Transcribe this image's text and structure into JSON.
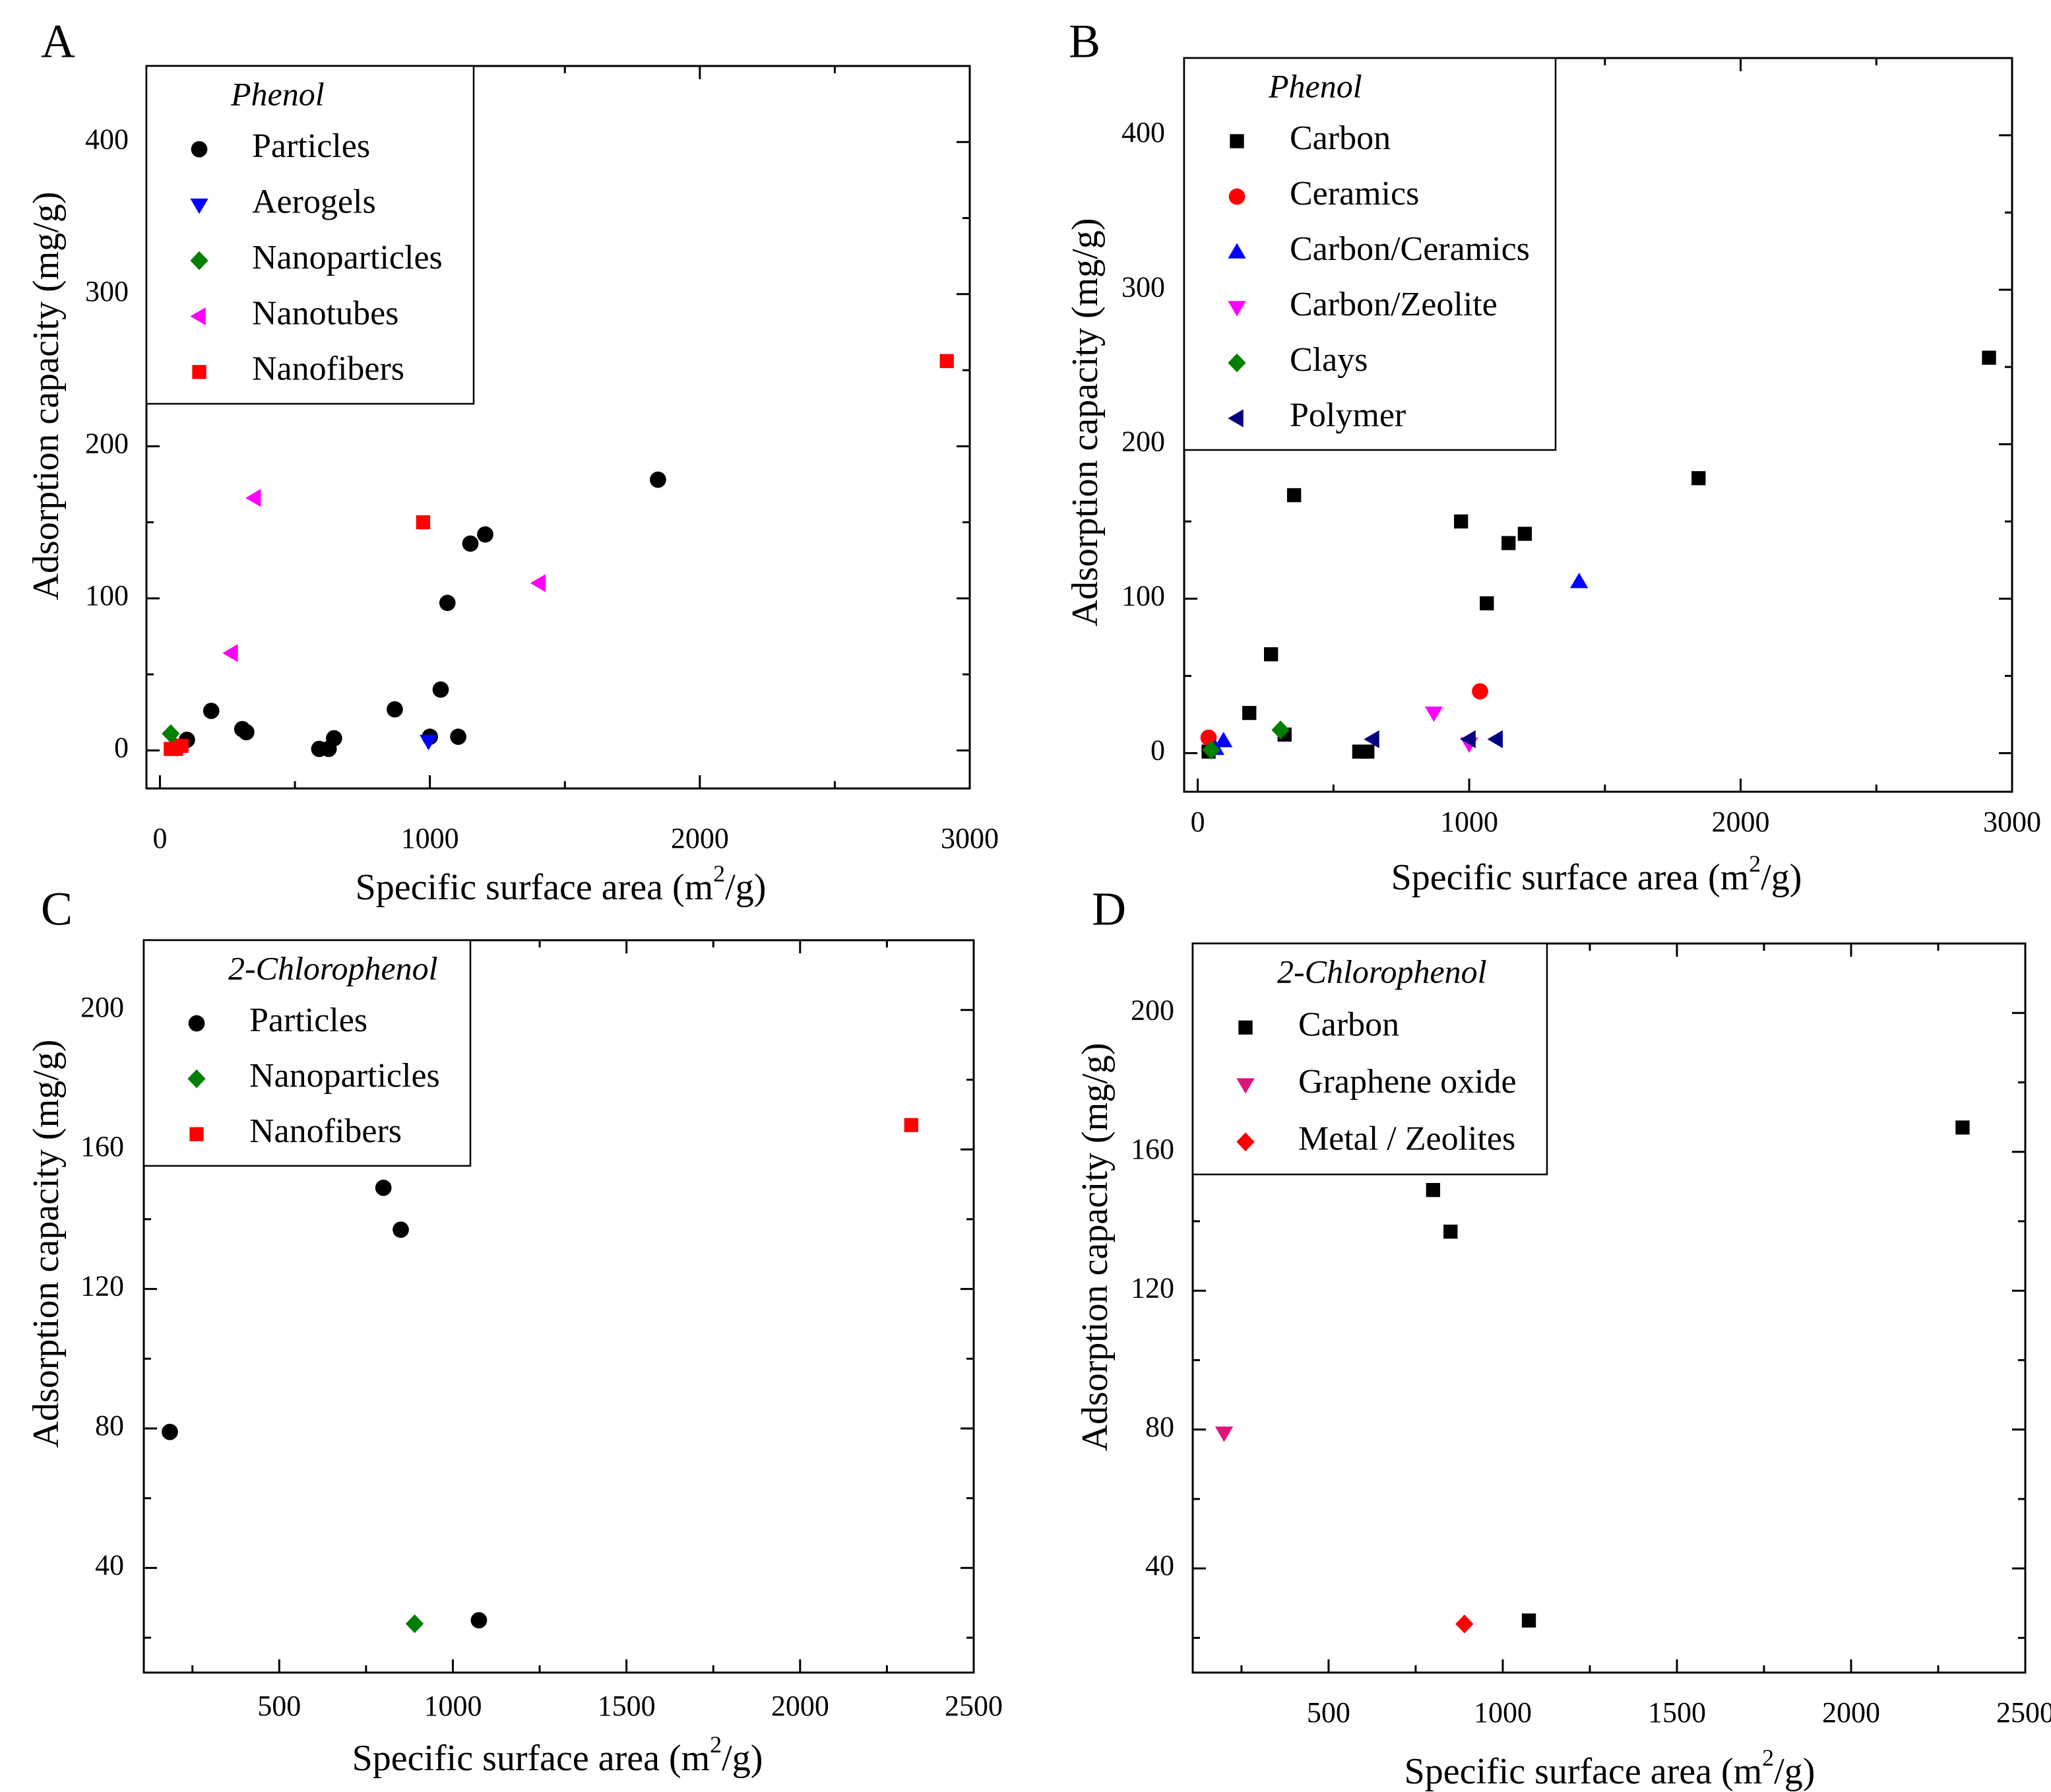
{
  "chart_data": [
    {
      "panel": "A",
      "type": "scatter",
      "xlabel": "Specific surface area (m",
      "xlabel_sup": "2",
      "xlabel_end": "/g)",
      "ylabel": "Adsorption capacity (mg/g)",
      "xlim": [
        -50,
        3000
      ],
      "ylim": [
        -25,
        450
      ],
      "xticks": [
        0,
        1000,
        2000,
        3000
      ],
      "yticks": [
        0,
        100,
        200,
        300,
        400
      ],
      "legend_title": "Phenol",
      "legend_position": "top-left",
      "series": [
        {
          "name": "Particles",
          "marker": "circle",
          "color": "#000000",
          "points": [
            [
              100,
              7
            ],
            [
              190,
              26
            ],
            [
              305,
              14
            ],
            [
              320,
              12
            ],
            [
              590,
              1
            ],
            [
              625,
              1
            ],
            [
              645,
              8
            ],
            [
              870,
              27
            ],
            [
              1000,
              9
            ],
            [
              1040,
              40
            ],
            [
              1065,
              97
            ],
            [
              1105,
              9
            ],
            [
              1150,
              136
            ],
            [
              1205,
              142
            ],
            [
              1845,
              178
            ]
          ]
        },
        {
          "name": "Aerogels",
          "marker": "triangle-down",
          "color": "#0000ff",
          "points": [
            [
              995,
              6
            ]
          ]
        },
        {
          "name": "Nanoparticles",
          "marker": "diamond",
          "color": "#008000",
          "points": [
            [
              40,
              11
            ],
            [
              55,
              3
            ]
          ]
        },
        {
          "name": "Nanotubes",
          "marker": "triangle-left",
          "color": "#ff00ff",
          "points": [
            [
              265,
              64
            ],
            [
              350,
              166
            ],
            [
              1405,
              110
            ]
          ]
        },
        {
          "name": "Nanofibers",
          "marker": "square",
          "color": "#ff0000",
          "points": [
            [
              40,
              1
            ],
            [
              60,
              1
            ],
            [
              80,
              3
            ],
            [
              975,
              150
            ],
            [
              2915,
              256
            ]
          ]
        }
      ]
    },
    {
      "panel": "B",
      "type": "scatter",
      "xlabel": "Specific surface area (m",
      "xlabel_sup": "2",
      "xlabel_end": "/g)",
      "ylabel": "Adsorption capacity (mg/g)",
      "xlim": [
        -50,
        3000
      ],
      "ylim": [
        -25,
        450
      ],
      "xticks": [
        0,
        1000,
        2000,
        3000
      ],
      "yticks": [
        0,
        100,
        200,
        300,
        400
      ],
      "legend_title": "Phenol",
      "legend_position": "top-left",
      "series": [
        {
          "name": "Carbon",
          "marker": "square",
          "color": "#000000",
          "points": [
            [
              40,
              1
            ],
            [
              190,
              26
            ],
            [
              270,
              64
            ],
            [
              320,
              12
            ],
            [
              355,
              167
            ],
            [
              595,
              1
            ],
            [
              625,
              1
            ],
            [
              970,
              150
            ],
            [
              1065,
              97
            ],
            [
              1145,
              136
            ],
            [
              1205,
              142
            ],
            [
              1845,
              178
            ],
            [
              2915,
              256
            ]
          ]
        },
        {
          "name": "Ceramics",
          "marker": "circle",
          "color": "#ff0000",
          "points": [
            [
              40,
              10
            ],
            [
              1040,
              40
            ]
          ]
        },
        {
          "name": "Carbon/Ceramics",
          "marker": "triangle-up",
          "color": "#0000ff",
          "points": [
            [
              65,
              3
            ],
            [
              95,
              8
            ],
            [
              1405,
              111
            ]
          ]
        },
        {
          "name": "Carbon/Zeolite",
          "marker": "triangle-down",
          "color": "#ff00ff",
          "points": [
            [
              870,
              26
            ],
            [
              1000,
              6
            ]
          ]
        },
        {
          "name": "Clays",
          "marker": "diamond",
          "color": "#008000",
          "points": [
            [
              50,
              2
            ],
            [
              305,
              15
            ]
          ]
        },
        {
          "name": "Polymer",
          "marker": "triangle-left",
          "color": "#000080",
          "points": [
            [
              645,
              9
            ],
            [
              1000,
              9
            ],
            [
              1100,
              9
            ]
          ]
        }
      ]
    },
    {
      "panel": "C",
      "type": "scatter",
      "xlabel": "Specific surface area (m",
      "xlabel_sup": "2",
      "xlabel_end": "/g)",
      "ylabel": "Adsorption capacity",
      "ylabel_unit": "(mg/g)",
      "xlim": [
        110,
        2500
      ],
      "ylim": [
        10,
        220
      ],
      "xticks": [
        500,
        1000,
        1500,
        2000,
        2500
      ],
      "yticks": [
        40,
        80,
        120,
        160,
        200
      ],
      "legend_title": "2-Chlorophenol",
      "legend_position": "top-left",
      "series": [
        {
          "name": "Particles",
          "marker": "circle",
          "color": "#000000",
          "points": [
            [
              185,
              79
            ],
            [
              800,
              149
            ],
            [
              850,
              137
            ],
            [
              1075,
              25
            ]
          ]
        },
        {
          "name": "Nanoparticles",
          "marker": "diamond",
          "color": "#008000",
          "points": [
            [
              890,
              24
            ]
          ]
        },
        {
          "name": "Nanofibers",
          "marker": "square",
          "color": "#ff0000",
          "points": [
            [
              2320,
              167
            ]
          ]
        }
      ]
    },
    {
      "panel": "D",
      "type": "scatter",
      "xlabel": "Specific surface area (m",
      "xlabel_sup": "2",
      "xlabel_end": "/g)",
      "ylabel": "Adsorption capacity",
      "ylabel_unit": "(mg/g)",
      "xlim": [
        110,
        2500
      ],
      "ylim": [
        10,
        220
      ],
      "xticks": [
        500,
        1000,
        1500,
        2000,
        2500
      ],
      "yticks": [
        40,
        80,
        120,
        160,
        200
      ],
      "legend_title": "2-Chlorophenol",
      "legend_position": "top-left",
      "series": [
        {
          "name": "Carbon",
          "marker": "square",
          "color": "#000000",
          "points": [
            [
              800,
              149
            ],
            [
              850,
              137
            ],
            [
              1075,
              25
            ],
            [
              2320,
              167
            ]
          ]
        },
        {
          "name": "Graphene oxide",
          "marker": "triangle-down",
          "color": "#e0147a",
          "points": [
            [
              200,
              79
            ]
          ]
        },
        {
          "name": "Metal / Zeolites",
          "marker": "diamond",
          "color": "#ff0000",
          "points": [
            [
              890,
              24
            ]
          ]
        }
      ]
    }
  ]
}
